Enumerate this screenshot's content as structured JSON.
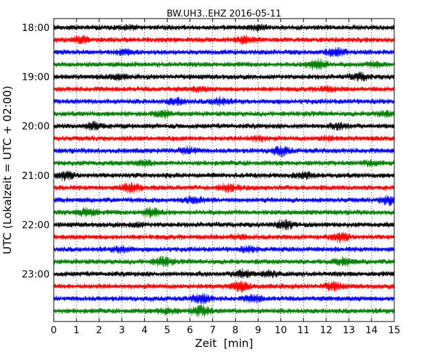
{
  "chart_data": {
    "type": "line",
    "title": "BW.UH3..EHZ 2016-05-11",
    "xlabel": "Zeit  [min]",
    "ylabel": "UTC (Lokalzeit = UTC + 02:00)",
    "xlim": [
      0,
      15
    ],
    "x_ticks": [
      "0",
      "1",
      "2",
      "3",
      "4",
      "5",
      "6",
      "7",
      "8",
      "9",
      "10",
      "11",
      "12",
      "13",
      "14",
      "15"
    ],
    "y_ticks": [
      {
        "label": "18:00",
        "trace": 0
      },
      {
        "label": "19:00",
        "trace": 4
      },
      {
        "label": "20:00",
        "trace": 8
      },
      {
        "label": "21:00",
        "trace": 12
      },
      {
        "label": "22:00",
        "trace": 16
      },
      {
        "label": "23:00",
        "trace": 20
      }
    ],
    "grid": "vertical dotted at each minute",
    "trace_interval_minutes": 15,
    "colors": [
      "#000000",
      "#ff0000",
      "#0000ff",
      "#008000"
    ],
    "series": [
      {
        "start": "18:00",
        "color": "#000000",
        "bursts": [
          [
            3.2,
            0.3
          ],
          [
            9.0,
            0.4
          ]
        ]
      },
      {
        "start": "18:15",
        "color": "#ff0000",
        "bursts": [
          [
            1.2,
            0.6
          ],
          [
            8.5,
            0.7
          ]
        ]
      },
      {
        "start": "18:30",
        "color": "#0000ff",
        "bursts": [
          [
            3.1,
            0.4
          ],
          [
            12.4,
            0.8
          ]
        ]
      },
      {
        "start": "18:45",
        "color": "#008000",
        "bursts": [
          [
            11.6,
            1.0
          ],
          [
            14.2,
            0.4
          ]
        ]
      },
      {
        "start": "19:00",
        "color": "#000000",
        "bursts": [
          [
            2.8,
            0.4
          ],
          [
            13.5,
            0.6
          ]
        ]
      },
      {
        "start": "19:15",
        "color": "#ff0000",
        "bursts": [
          [
            6.4,
            0.3
          ],
          [
            12.0,
            0.4
          ]
        ]
      },
      {
        "start": "19:30",
        "color": "#0000ff",
        "bursts": [
          [
            5.4,
            0.6
          ],
          [
            7.3,
            0.6
          ]
        ]
      },
      {
        "start": "19:45",
        "color": "#008000",
        "bursts": [
          [
            4.8,
            0.7
          ],
          [
            14.5,
            0.4
          ]
        ]
      },
      {
        "start": "20:00",
        "color": "#000000",
        "bursts": [
          [
            1.8,
            0.7
          ],
          [
            12.6,
            0.5
          ]
        ]
      },
      {
        "start": "20:15",
        "color": "#ff0000",
        "bursts": [
          [
            9.0,
            0.4
          ],
          [
            12.0,
            0.3
          ]
        ]
      },
      {
        "start": "20:30",
        "color": "#0000ff",
        "bursts": [
          [
            10.0,
            0.8
          ],
          [
            6.0,
            0.5
          ]
        ]
      },
      {
        "start": "20:45",
        "color": "#008000",
        "bursts": [
          [
            4.0,
            0.4
          ],
          [
            14.0,
            0.4
          ]
        ]
      },
      {
        "start": "21:00",
        "color": "#000000",
        "bursts": [
          [
            0.5,
            0.7
          ],
          [
            11.0,
            0.5
          ]
        ]
      },
      {
        "start": "21:15",
        "color": "#ff0000",
        "bursts": [
          [
            3.4,
            0.9
          ],
          [
            7.7,
            0.6
          ]
        ]
      },
      {
        "start": "21:30",
        "color": "#0000ff",
        "bursts": [
          [
            14.8,
            0.9
          ],
          [
            6.2,
            0.5
          ]
        ]
      },
      {
        "start": "21:45",
        "color": "#008000",
        "bursts": [
          [
            1.5,
            0.8
          ],
          [
            4.3,
            0.9
          ]
        ]
      },
      {
        "start": "22:00",
        "color": "#000000",
        "bursts": [
          [
            10.2,
            0.8
          ],
          [
            3.6,
            0.3
          ]
        ]
      },
      {
        "start": "22:15",
        "color": "#ff0000",
        "bursts": [
          [
            12.6,
            0.8
          ],
          [
            8.1,
            0.3
          ]
        ]
      },
      {
        "start": "22:30",
        "color": "#0000ff",
        "bursts": [
          [
            3.0,
            0.5
          ],
          [
            8.6,
            0.4
          ]
        ]
      },
      {
        "start": "22:45",
        "color": "#008000",
        "bursts": [
          [
            4.8,
            0.8
          ],
          [
            12.8,
            0.6
          ]
        ]
      },
      {
        "start": "23:00",
        "color": "#000000",
        "bursts": [
          [
            8.3,
            0.7
          ],
          [
            9.5,
            0.5
          ]
        ]
      },
      {
        "start": "23:15",
        "color": "#ff0000",
        "bursts": [
          [
            8.2,
            0.9
          ],
          [
            12.3,
            0.7
          ]
        ]
      },
      {
        "start": "23:30",
        "color": "#0000ff",
        "bursts": [
          [
            6.5,
            0.9
          ],
          [
            8.8,
            0.6
          ]
        ]
      },
      {
        "start": "23:45",
        "color": "#008000",
        "bursts": [
          [
            6.5,
            1.0
          ],
          [
            5.0,
            0.5
          ]
        ]
      }
    ]
  }
}
